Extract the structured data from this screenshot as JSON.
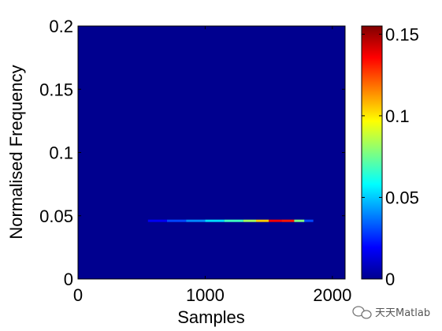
{
  "chart_data": {
    "type": "heatmap",
    "xlabel": "Samples",
    "ylabel": "Normalised Frequency",
    "xlim": [
      0,
      2100
    ],
    "ylim": [
      0,
      0.2
    ],
    "x_ticks": [
      "0",
      "1000",
      "2000"
    ],
    "x_tick_values": [
      0,
      1000,
      2000
    ],
    "y_ticks": [
      "0",
      "0.05",
      "0.1",
      "0.15",
      "0.2"
    ],
    "y_tick_values": [
      0,
      0.05,
      0.1,
      0.15,
      0.2
    ],
    "colorbar": {
      "range": [
        0,
        0.155
      ],
      "ticks": [
        "0",
        "0.05",
        "0.1",
        "0.15"
      ],
      "tick_values": [
        0,
        0.05,
        0.1,
        0.15
      ],
      "colormap": "jet"
    },
    "background_value": 0,
    "ridge": {
      "frequency": 0.046,
      "points": [
        {
          "x": 550,
          "value": 0.01
        },
        {
          "x": 700,
          "value": 0.025
        },
        {
          "x": 850,
          "value": 0.035
        },
        {
          "x": 1000,
          "value": 0.045
        },
        {
          "x": 1150,
          "value": 0.06
        },
        {
          "x": 1300,
          "value": 0.075
        },
        {
          "x": 1400,
          "value": 0.09
        },
        {
          "x": 1500,
          "value": 0.12
        },
        {
          "x": 1600,
          "value": 0.155
        },
        {
          "x": 1700,
          "value": 0.11
        },
        {
          "x": 1780,
          "value": 0.045
        },
        {
          "x": 1850,
          "value": 0.015
        }
      ]
    },
    "grid": false,
    "legend": "none"
  },
  "watermark": {
    "text": "天天Matlab",
    "icon": "chat-bubble-icon"
  }
}
